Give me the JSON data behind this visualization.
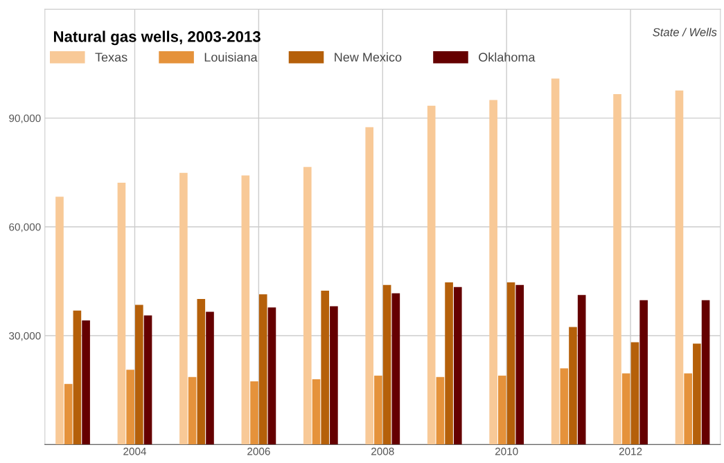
{
  "chart_data": {
    "type": "bar",
    "title": "Natural gas wells, 2003-2013",
    "annotations": [
      "State / Wells"
    ],
    "categories": [
      null,
      "2004",
      null,
      "2006",
      null,
      "2008",
      null,
      "2010",
      null,
      "2012",
      null
    ],
    "series": [
      {
        "name": "Texas",
        "color": "#f8c997",
        "values": [
          68300,
          72200,
          74900,
          74200,
          76500,
          87500,
          93400,
          95000,
          100900,
          96600,
          97600
        ]
      },
      {
        "name": "Louisiana",
        "color": "#e5923b",
        "values": [
          16700,
          20600,
          18600,
          17400,
          18000,
          19000,
          18600,
          19000,
          21000,
          19600,
          19600
        ]
      },
      {
        "name": "New Mexico",
        "color": "#b5600a",
        "values": [
          36900,
          38500,
          40100,
          41400,
          42400,
          44000,
          44700,
          44700,
          32400,
          28200,
          27800
        ]
      },
      {
        "name": "Oklahoma",
        "color": "#650000",
        "values": [
          34200,
          35600,
          36600,
          37800,
          38100,
          41700,
          43400,
          44000,
          41200,
          39800,
          39800
        ]
      }
    ],
    "ylim": [
      0,
      120000
    ],
    "yticks": [
      {
        "value": 30000,
        "label": "30,000"
      },
      {
        "value": 60000,
        "label": "60,000"
      },
      {
        "value": 90000,
        "label": "90,000"
      }
    ],
    "grid": true,
    "legend": "top left"
  }
}
